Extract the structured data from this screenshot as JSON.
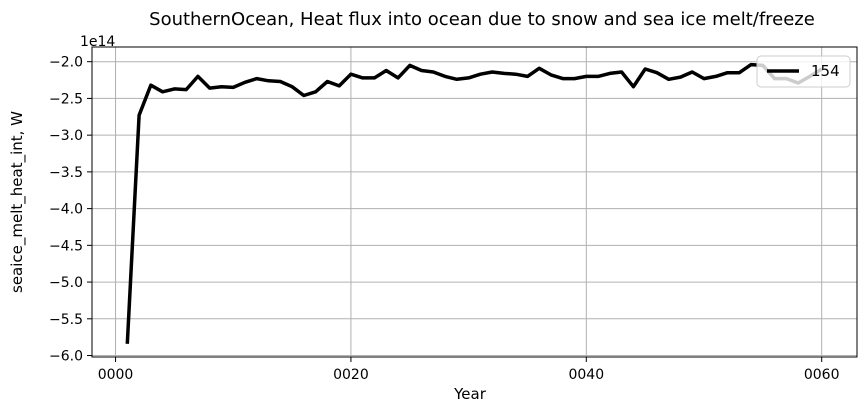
{
  "chart_data": {
    "type": "line",
    "title": "SouthernOcean, Heat flux into ocean due to snow and sea ice melt/freeze",
    "xlabel": "Year",
    "ylabel": "seaice_melt_heat_int, W",
    "y_offset_label": "1e14",
    "y_scale_factor": 100000000000000.0,
    "xlim": [
      -2,
      63
    ],
    "ylim": [
      -6.02,
      -1.8
    ],
    "x_ticks": [
      0,
      20,
      40,
      60
    ],
    "x_tick_labels": [
      "0000",
      "0020",
      "0040",
      "0060"
    ],
    "y_ticks": [
      -6.0,
      -5.5,
      -5.0,
      -4.5,
      -4.0,
      -3.5,
      -3.0,
      -2.5,
      -2.0
    ],
    "y_tick_labels": [
      "−6.0",
      "−5.5",
      "−5.0",
      "−4.5",
      "−4.0",
      "−3.5",
      "−3.0",
      "−2.5",
      "−2.0"
    ],
    "grid": true,
    "legend_position": "top-right",
    "series": [
      {
        "name": "154",
        "color": "#000000",
        "x": [
          1,
          2,
          3,
          4,
          5,
          6,
          7,
          8,
          9,
          10,
          11,
          12,
          13,
          14,
          15,
          16,
          17,
          18,
          19,
          20,
          21,
          22,
          23,
          24,
          25,
          26,
          27,
          28,
          29,
          30,
          31,
          32,
          33,
          34,
          35,
          36,
          37,
          38,
          39,
          40,
          41,
          42,
          43,
          44,
          45,
          46,
          47,
          48,
          49,
          50,
          51,
          52,
          53,
          54,
          55,
          56,
          57,
          58,
          59,
          60
        ],
        "values": [
          -5.84,
          -2.73,
          -2.32,
          -2.41,
          -2.37,
          -2.38,
          -2.2,
          -2.36,
          -2.34,
          -2.35,
          -2.28,
          -2.23,
          -2.26,
          -2.27,
          -2.34,
          -2.46,
          -2.41,
          -2.27,
          -2.33,
          -2.17,
          -2.22,
          -2.22,
          -2.12,
          -2.22,
          -2.05,
          -2.12,
          -2.14,
          -2.2,
          -2.24,
          -2.22,
          -2.17,
          -2.14,
          -2.16,
          -2.17,
          -2.2,
          -2.09,
          -2.18,
          -2.23,
          -2.23,
          -2.2,
          -2.2,
          -2.16,
          -2.14,
          -2.34,
          -2.1,
          -2.15,
          -2.24,
          -2.21,
          -2.14,
          -2.23,
          -2.2,
          -2.15,
          -2.15,
          -2.04,
          -2.05,
          -2.23,
          -2.23,
          -2.29,
          -2.2,
          -2.1
        ]
      }
    ]
  }
}
